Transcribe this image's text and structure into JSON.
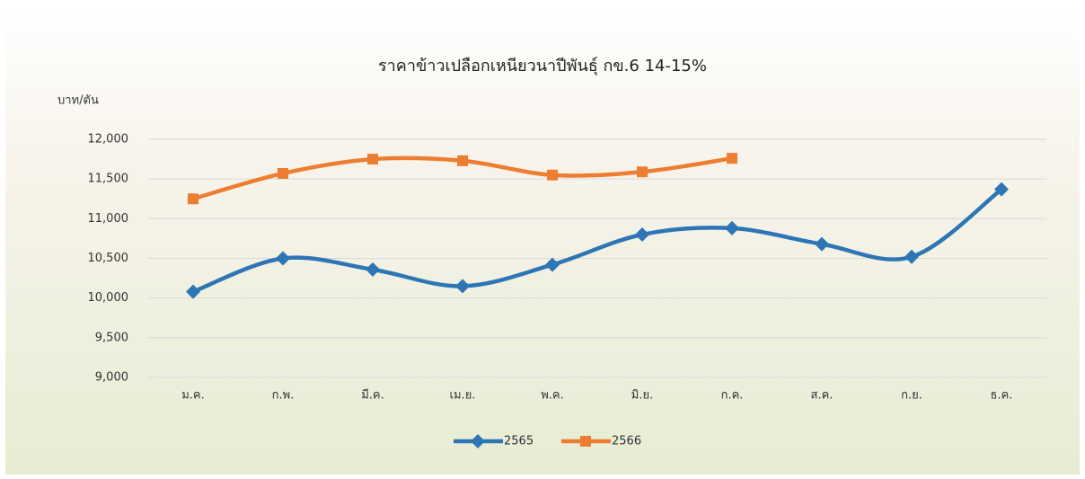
{
  "chart_data": {
    "type": "line",
    "title": "ราคาข้าวเปลือกเหนียวนาปีพันธุ์ กข.6 14-15%",
    "y_label": "บาท/ตัน",
    "categories": [
      "ม.ค.",
      "ก.พ.",
      "มี.ค.",
      "เม.ย.",
      "พ.ค.",
      "มิ.ย.",
      "ก.ค.",
      "ส.ค.",
      "ก.ย.",
      "ธ.ค."
    ],
    "series": [
      {
        "name": "2565",
        "color": "#2e75b6",
        "marker": "diamond",
        "values": [
          10080,
          10500,
          10360,
          10150,
          10420,
          10800,
          10880,
          10680,
          10520,
          11370
        ]
      },
      {
        "name": "2566",
        "color": "#ed7d31",
        "marker": "square",
        "values": [
          11250,
          11570,
          11750,
          11730,
          11550,
          11590,
          11760,
          null,
          null,
          null
        ]
      }
    ],
    "ylim": [
      9000,
      12000
    ],
    "yticks": [
      {
        "value": 9000,
        "label": "9,000"
      },
      {
        "value": 9500,
        "label": "9,500"
      },
      {
        "value": 10000,
        "label": "10,000"
      },
      {
        "value": 10500,
        "label": "10,500"
      },
      {
        "value": 11000,
        "label": "11,000"
      },
      {
        "value": 11500,
        "label": "11,500"
      },
      {
        "value": 12000,
        "label": "12,000"
      }
    ],
    "grid": true,
    "smooth": true,
    "legend": "bottom"
  }
}
